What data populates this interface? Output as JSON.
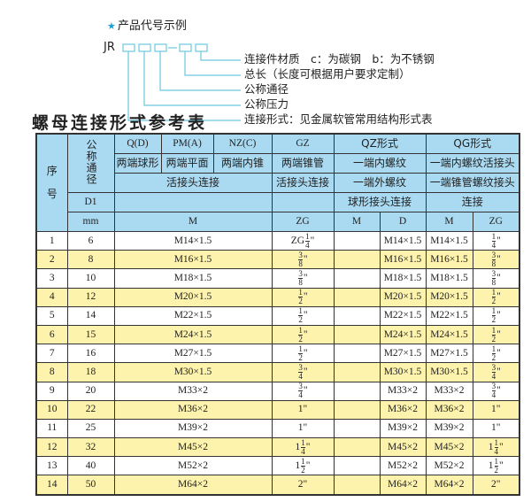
{
  "example": {
    "title": "产品代号示例",
    "star_icon": "star-icon",
    "code_prefix": "JR",
    "labels": [
      "连接件材质　c：为碳钢　b：为不锈钢",
      "总长（长度可根据用户要求定制）",
      "公称通径",
      "公称压力",
      "连接形式：见金属软管常用结构形式表"
    ],
    "line_color": "#6cc8e0"
  },
  "table_title": "螺母连接形式参考表",
  "table": {
    "header": {
      "seq": "序",
      "seq2": "号",
      "nominal": "公称通径",
      "d1": "D1",
      "mm": "mm",
      "qd": "Q(D)",
      "pm": "PM(A)",
      "nz": "NZ(C)",
      "gz": "GZ",
      "qz": "QZ形式",
      "qg": "QG形式",
      "qd_desc": "两端球形",
      "pm_desc": "两端平面",
      "nz_desc": "两端内锥",
      "gz_desc": "两端锥管",
      "qz_desc": "一端内螺纹",
      "qg_desc": "一端内螺纹活接头",
      "m_conn": "活接头连接",
      "gz_conn": "活接头连接",
      "qz_conn": "一端外螺纹",
      "qg_conn": "一端锥管螺纹接头",
      "qz_conn2": "球形接头连接",
      "qg_conn2": "连接",
      "col_m": "M",
      "col_zg": "ZG",
      "col_qz_m": "M",
      "col_qz_d": "D",
      "col_qg_m": "M",
      "col_qg_zg": "ZG"
    },
    "header_color": "#a9daf2",
    "stripe_color": "#fdf3ac",
    "rows": [
      {
        "no": "1",
        "d1": "6",
        "m": "M14×1.5",
        "zg": {
          "pre": "ZG",
          "w": "",
          "n": "1",
          "d": "4",
          "u": "\""
        },
        "qz_m": "",
        "qz_d": "M14×1.5",
        "qg_m": "M14×1.5",
        "qg_zg": {
          "pre": "",
          "w": "",
          "n": "1",
          "d": "4",
          "u": "\""
        }
      },
      {
        "no": "2",
        "d1": "8",
        "m": "M16×1.5",
        "zg": {
          "pre": "",
          "w": "",
          "n": "3",
          "d": "8",
          "u": "\""
        },
        "qz_m": "",
        "qz_d": "M16×1.5",
        "qg_m": "M16×1.5",
        "qg_zg": {
          "pre": "",
          "w": "",
          "n": "3",
          "d": "8",
          "u": "\""
        }
      },
      {
        "no": "3",
        "d1": "10",
        "m": "M18×1.5",
        "zg": {
          "pre": "",
          "w": "",
          "n": "3",
          "d": "8",
          "u": "\""
        },
        "qz_m": "",
        "qz_d": "M18×1.5",
        "qg_m": "M18×1.5",
        "qg_zg": {
          "pre": "",
          "w": "",
          "n": "3",
          "d": "8",
          "u": "\""
        }
      },
      {
        "no": "4",
        "d1": "12",
        "m": "M20×1.5",
        "zg": {
          "pre": "",
          "w": "",
          "n": "1",
          "d": "2",
          "u": "\""
        },
        "qz_m": "",
        "qz_d": "M20×1.5",
        "qg_m": "M20×1.5",
        "qg_zg": {
          "pre": "",
          "w": "",
          "n": "1",
          "d": "2",
          "u": "\""
        }
      },
      {
        "no": "5",
        "d1": "14",
        "m": "M22×1.5",
        "zg": {
          "pre": "",
          "w": "",
          "n": "1",
          "d": "2",
          "u": "\""
        },
        "qz_m": "",
        "qz_d": "M22×1.5",
        "qg_m": "M22×1.5",
        "qg_zg": {
          "pre": "",
          "w": "",
          "n": "1",
          "d": "2",
          "u": "\""
        }
      },
      {
        "no": "6",
        "d1": "15",
        "m": "M24×1.5",
        "zg": {
          "pre": "",
          "w": "",
          "n": "1",
          "d": "2",
          "u": "\""
        },
        "qz_m": "",
        "qz_d": "M24×1.5",
        "qg_m": "M24×1.5",
        "qg_zg": {
          "pre": "",
          "w": "",
          "n": "1",
          "d": "2",
          "u": "\""
        }
      },
      {
        "no": "7",
        "d1": "16",
        "m": "M27×1.5",
        "zg": {
          "pre": "",
          "w": "",
          "n": "1",
          "d": "2",
          "u": "\""
        },
        "qz_m": "",
        "qz_d": "M27×1.5",
        "qg_m": "M27×1.5",
        "qg_zg": {
          "pre": "",
          "w": "",
          "n": "1",
          "d": "2",
          "u": "\""
        }
      },
      {
        "no": "8",
        "d1": "18",
        "m": "M30×1.5",
        "zg": {
          "pre": "",
          "w": "",
          "n": "3",
          "d": "4",
          "u": "\""
        },
        "qz_m": "",
        "qz_d": "M30×1.5",
        "qg_m": "M30×1.5",
        "qg_zg": {
          "pre": "",
          "w": "",
          "n": "3",
          "d": "4",
          "u": "\""
        }
      },
      {
        "no": "9",
        "d1": "20",
        "m": "M33×2",
        "zg": {
          "pre": "",
          "w": "",
          "n": "3",
          "d": "4",
          "u": "\""
        },
        "qz_m": "",
        "qz_d": "M33×2",
        "qg_m": "M33×2",
        "qg_zg": {
          "pre": "",
          "w": "",
          "n": "3",
          "d": "4",
          "u": "\""
        }
      },
      {
        "no": "10",
        "d1": "22",
        "m": "M36×2",
        "zg": {
          "pre": "",
          "w": "1",
          "n": "",
          "d": "",
          "u": "\""
        },
        "qz_m": "",
        "qz_d": "M36×2",
        "qg_m": "M36×2",
        "qg_zg": {
          "pre": "",
          "w": "1",
          "n": "",
          "d": "",
          "u": "\""
        }
      },
      {
        "no": "11",
        "d1": "25",
        "m": "M39×2",
        "zg": {
          "pre": "",
          "w": "1",
          "n": "",
          "d": "",
          "u": "\""
        },
        "qz_m": "",
        "qz_d": "M39×2",
        "qg_m": "M39×2",
        "qg_zg": {
          "pre": "",
          "w": "1",
          "n": "",
          "d": "",
          "u": "\""
        }
      },
      {
        "no": "12",
        "d1": "32",
        "m": "M45×2",
        "zg": {
          "pre": "",
          "w": "1",
          "n": "1",
          "d": "4",
          "u": "\""
        },
        "qz_m": "",
        "qz_d": "M45×2",
        "qg_m": "M45×2",
        "qg_zg": {
          "pre": "",
          "w": "1",
          "n": "1",
          "d": "4",
          "u": "\""
        }
      },
      {
        "no": "13",
        "d1": "40",
        "m": "M52×2",
        "zg": {
          "pre": "",
          "w": "1",
          "n": "1",
          "d": "2",
          "u": "\""
        },
        "qz_m": "",
        "qz_d": "M52×2",
        "qg_m": "M52×2",
        "qg_zg": {
          "pre": "",
          "w": "1",
          "n": "1",
          "d": "2",
          "u": "\""
        }
      },
      {
        "no": "14",
        "d1": "50",
        "m": "M64×2",
        "zg": {
          "pre": "",
          "w": "2",
          "n": "",
          "d": "",
          "u": "\""
        },
        "qz_m": "",
        "qz_d": "M64×2",
        "qg_m": "M64×2",
        "qg_zg": {
          "pre": "",
          "w": "2",
          "n": "",
          "d": "",
          "u": "\""
        }
      }
    ]
  }
}
